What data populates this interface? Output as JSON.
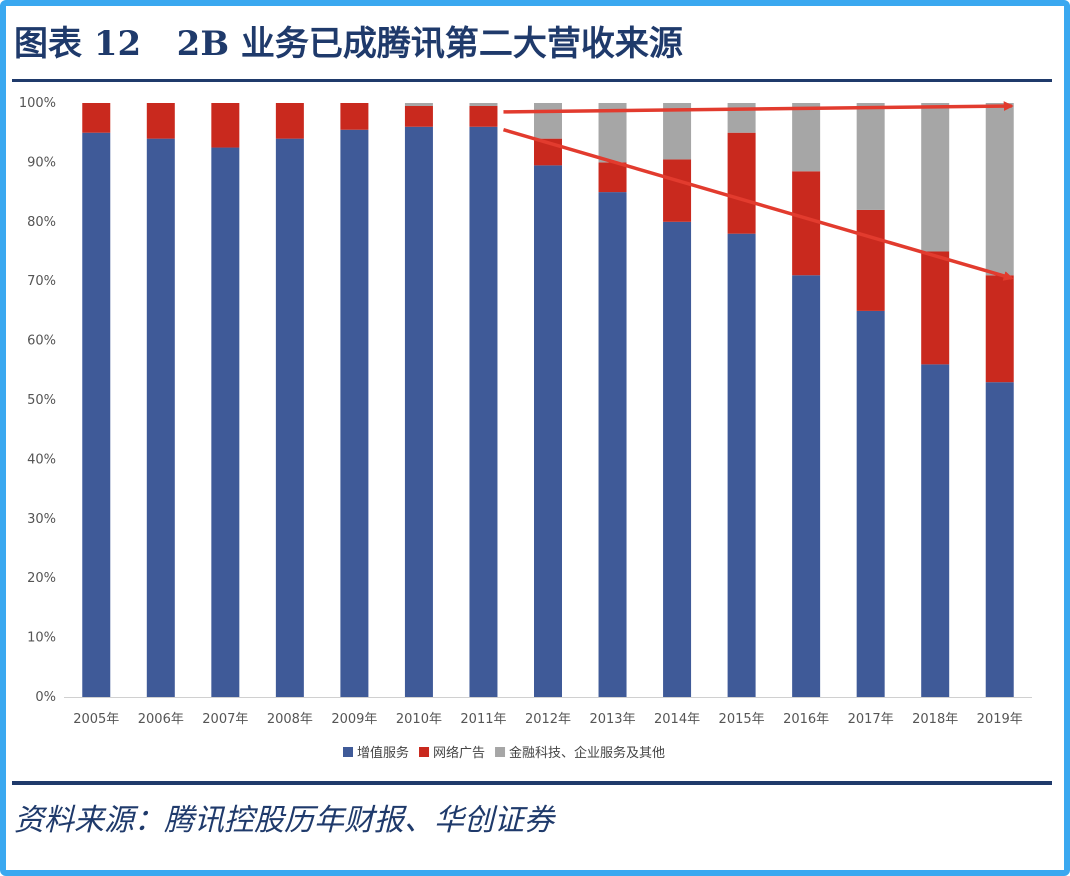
{
  "header": {
    "title": "图表 12   2B 业务已成腾讯第二大营收来源"
  },
  "footer": {
    "source": "资料来源：腾讯控股历年财报、华创证券"
  },
  "colors": {
    "frame": "#3aa8f0",
    "rule": "#1f3a6b",
    "value_added": "#3f5a98",
    "advertising": "#c9291e",
    "fintech": "#a6a6a6",
    "arrow": "#e23b2e"
  },
  "chart_data": {
    "type": "bar",
    "stacked": true,
    "categories": [
      "2005年",
      "2006年",
      "2007年",
      "2008年",
      "2009年",
      "2010年",
      "2011年",
      "2012年",
      "2013年",
      "2014年",
      "2015年",
      "2016年",
      "2017年",
      "2018年",
      "2019年"
    ],
    "ylim": [
      0,
      100
    ],
    "yticks": [
      "0%",
      "10%",
      "20%",
      "30%",
      "40%",
      "50%",
      "60%",
      "70%",
      "80%",
      "90%",
      "100%"
    ],
    "grid": false,
    "legend_position": "bottom",
    "series": [
      {
        "name": "增值服务",
        "color": "#3f5a98",
        "values": [
          95,
          94,
          92.5,
          94,
          95.5,
          96,
          96,
          89.5,
          85,
          80,
          78,
          71,
          65,
          56,
          53
        ]
      },
      {
        "name": "网络广告",
        "color": "#c9291e",
        "values": [
          5,
          6,
          7.5,
          6,
          4.5,
          3.5,
          3.5,
          4.5,
          5,
          10.5,
          17,
          17.5,
          17,
          19,
          18
        ]
      },
      {
        "name": "金融科技、企业服务及其他",
        "color": "#a6a6a6",
        "values": [
          0,
          0,
          0,
          0,
          0,
          0.5,
          0.5,
          6,
          10,
          9.5,
          5,
          11.5,
          18,
          25,
          29
        ]
      }
    ],
    "annotations": [
      {
        "type": "arrow",
        "from": {
          "category": "2011年",
          "value": 98.5
        },
        "to": {
          "category": "2019年",
          "value": 99.5
        }
      },
      {
        "type": "arrow",
        "from": {
          "category": "2011年",
          "value": 95.5
        },
        "to": {
          "category": "2019年",
          "value": 70.5
        }
      }
    ]
  }
}
